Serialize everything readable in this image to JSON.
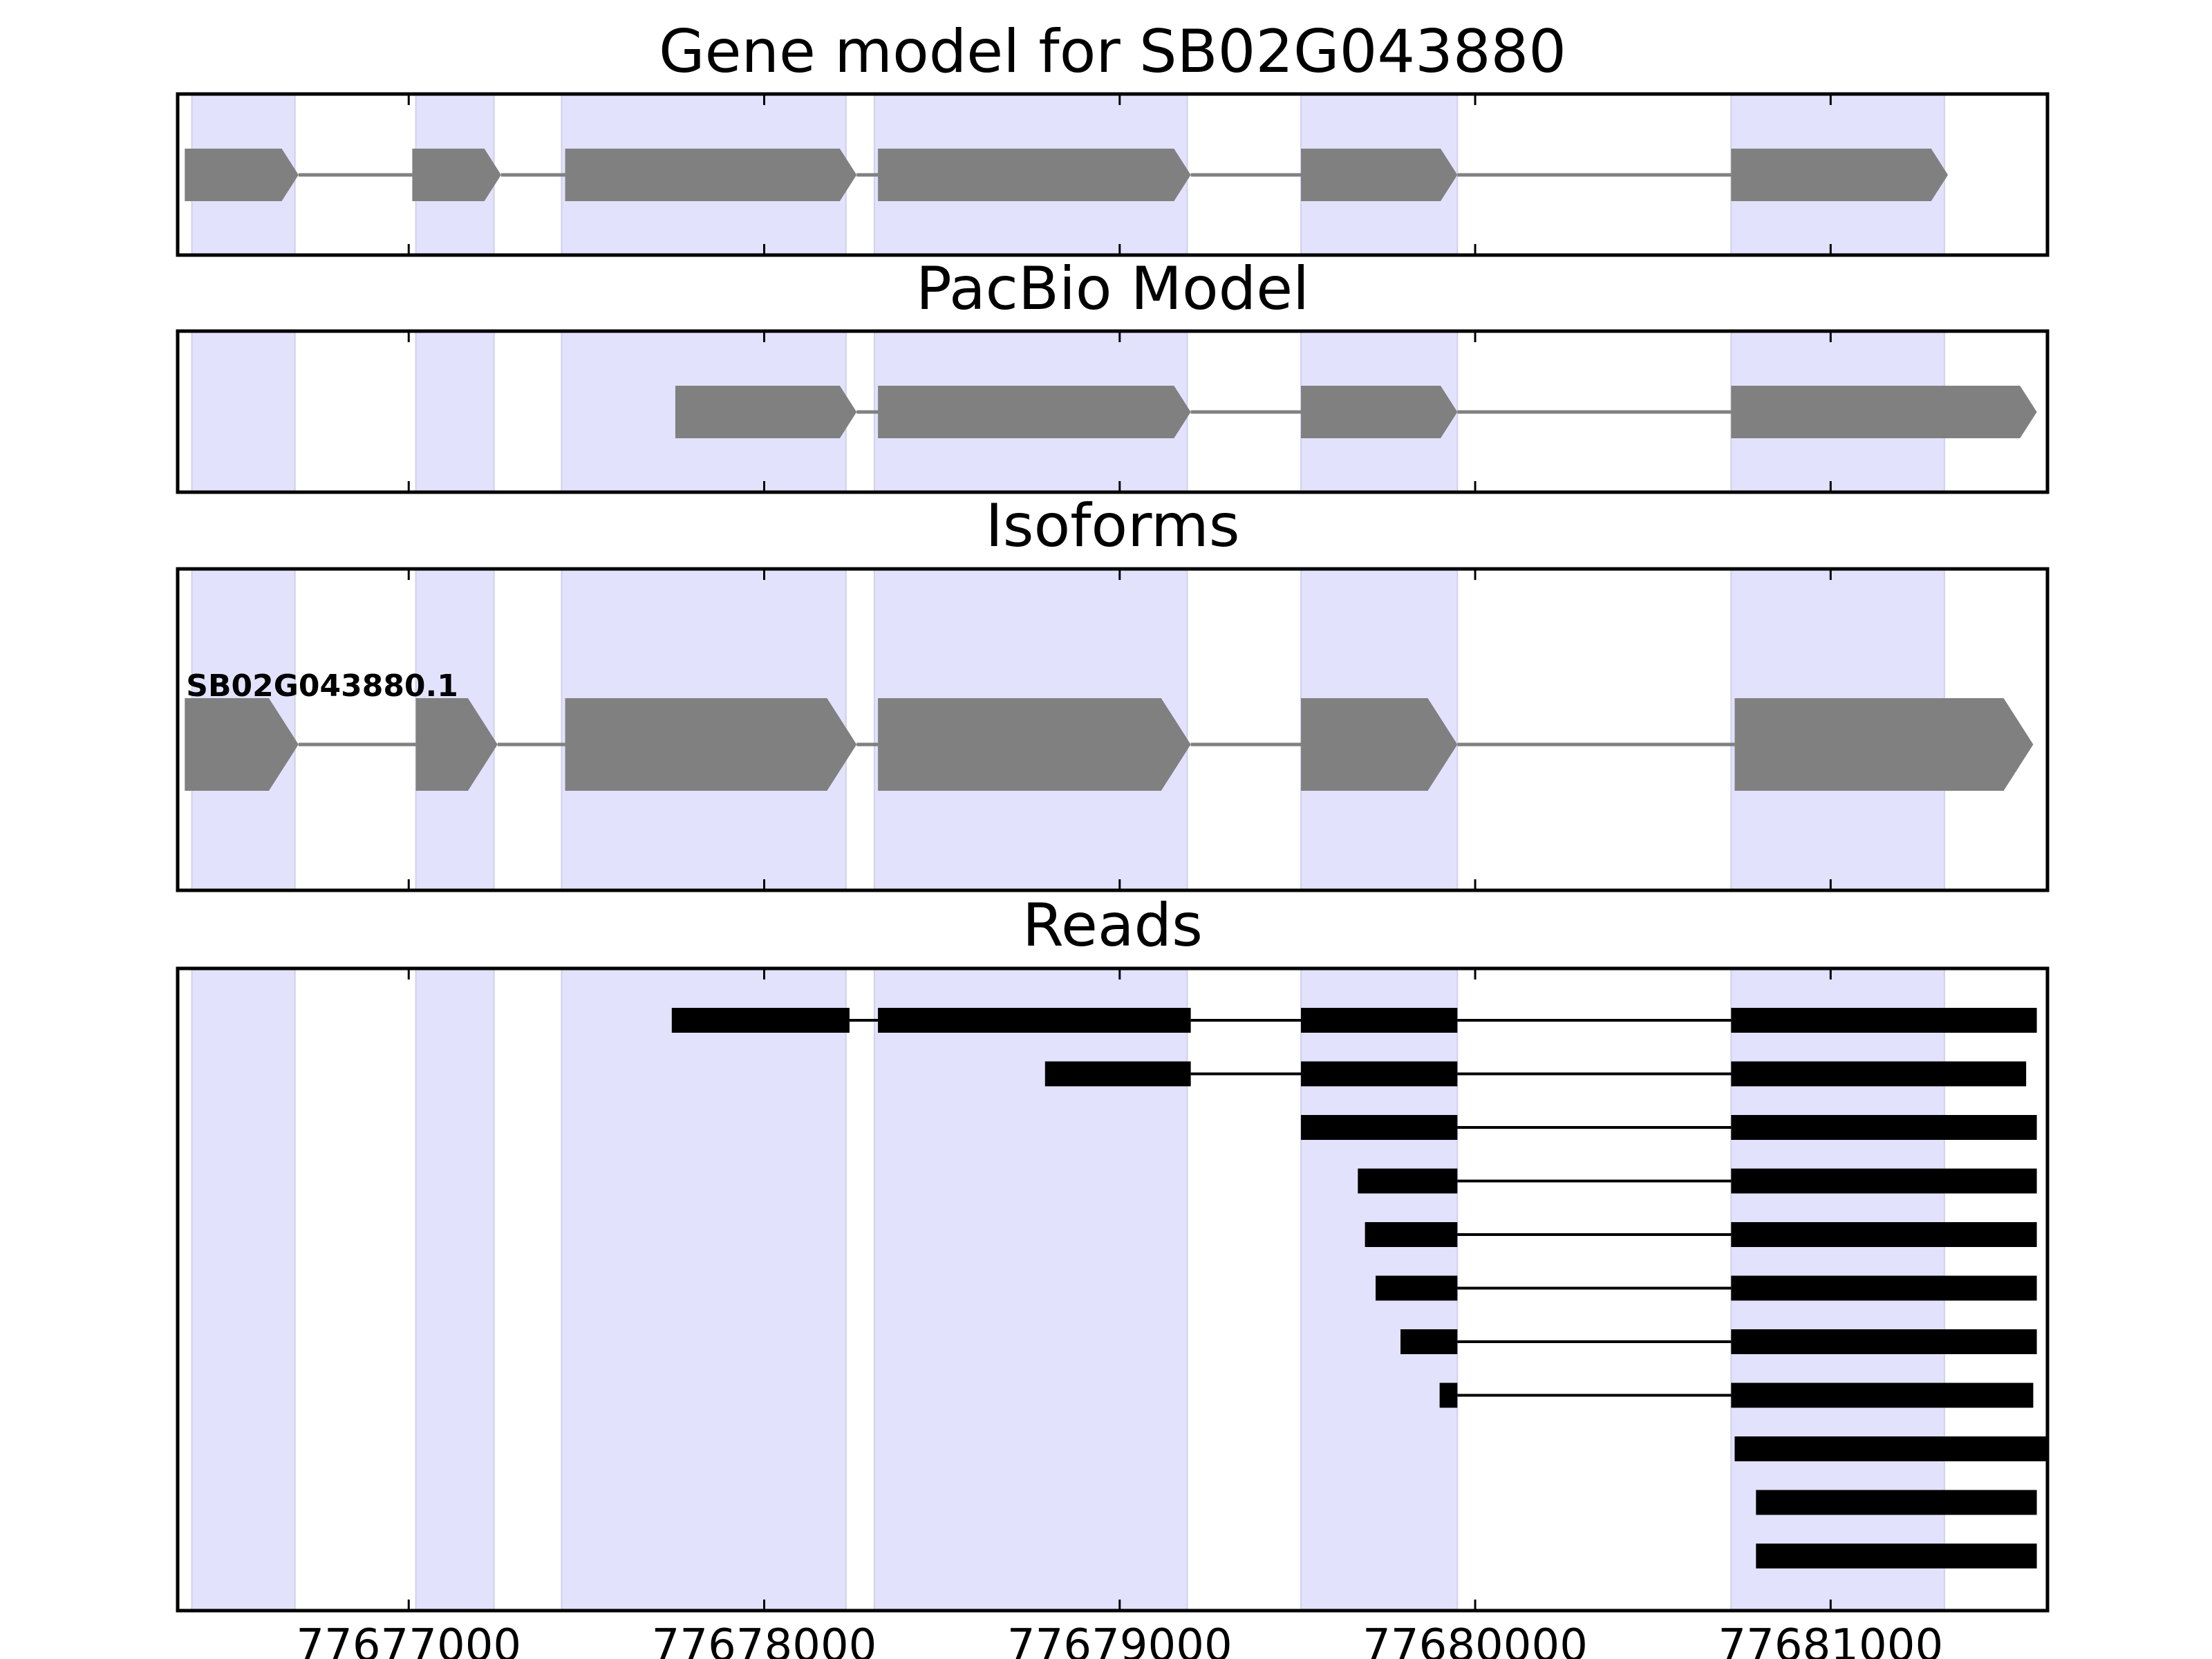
{
  "chart_data": {
    "type": "gene-track",
    "xlim": [
      77676350,
      77681610
    ],
    "x_ticks": [
      {
        "value": 77677000,
        "label": "77677000"
      },
      {
        "value": 77678000,
        "label": "77678000"
      },
      {
        "value": 77679000,
        "label": "77679000"
      },
      {
        "value": 77680000,
        "label": "77680000"
      },
      {
        "value": 77681000,
        "label": "77681000"
      }
    ],
    "highlight_regions": [
      [
        77676390,
        77676680
      ],
      [
        77677020,
        77677240
      ],
      [
        77677430,
        77678230
      ],
      [
        77678310,
        77679190
      ],
      [
        77679510,
        77679950
      ],
      [
        77680720,
        77681320
      ]
    ],
    "colors": {
      "highlight": "#e2e2fc",
      "highlight_edge": "#d0d0ee",
      "exon": "#808080",
      "intron": "#808080",
      "read": "#000000",
      "frame": "#000000"
    },
    "panels": [
      {
        "title": "Gene model for SB02G043880",
        "tracks": [
          {
            "exons": [
              [
                77676370,
                77676690
              ],
              [
                77677010,
                77677260
              ],
              [
                77677440,
                77678260
              ],
              [
                77678320,
                77679200
              ],
              [
                77679510,
                77679950
              ],
              [
                77680720,
                77681330
              ]
            ]
          }
        ]
      },
      {
        "title": "PacBio Model",
        "tracks": [
          {
            "exons": [
              [
                77677750,
                77678260
              ],
              [
                77678320,
                77679200
              ],
              [
                77679510,
                77679950
              ],
              [
                77680720,
                77681580
              ]
            ]
          }
        ]
      },
      {
        "title": "Isoforms",
        "tracks": [
          {
            "label": "SB02G043880.1",
            "exons": [
              [
                77676370,
                77676690
              ],
              [
                77677020,
                77677250
              ],
              [
                77677440,
                77678260
              ],
              [
                77678320,
                77679200
              ],
              [
                77679510,
                77679950
              ],
              [
                77680730,
                77681570
              ]
            ]
          }
        ]
      },
      {
        "title": "Reads",
        "tracks": [
          {
            "exons": [
              [
                77677740,
                77678240
              ],
              [
                77678320,
                77679200
              ],
              [
                77679510,
                77679950
              ],
              [
                77680720,
                77681580
              ]
            ]
          },
          {
            "exons": [
              [
                77678790,
                77679200
              ],
              [
                77679510,
                77679950
              ],
              [
                77680720,
                77681550
              ]
            ]
          },
          {
            "exons": [
              [
                77679510,
                77679950
              ],
              [
                77680720,
                77681580
              ]
            ]
          },
          {
            "exons": [
              [
                77679670,
                77679950
              ],
              [
                77680720,
                77681580
              ]
            ]
          },
          {
            "exons": [
              [
                77679690,
                77679950
              ],
              [
                77680720,
                77681580
              ]
            ]
          },
          {
            "exons": [
              [
                77679720,
                77679950
              ],
              [
                77680720,
                77681580
              ]
            ]
          },
          {
            "exons": [
              [
                77679790,
                77679950
              ],
              [
                77680720,
                77681580
              ]
            ]
          },
          {
            "exons": [
              [
                77679900,
                77679950
              ],
              [
                77680720,
                77681570
              ]
            ]
          },
          {
            "exons": [
              [
                77680730,
                77681610
              ]
            ]
          },
          {
            "exons": [
              [
                77680790,
                77681580
              ]
            ]
          },
          {
            "exons": [
              [
                77680790,
                77681580
              ]
            ]
          }
        ]
      }
    ]
  }
}
